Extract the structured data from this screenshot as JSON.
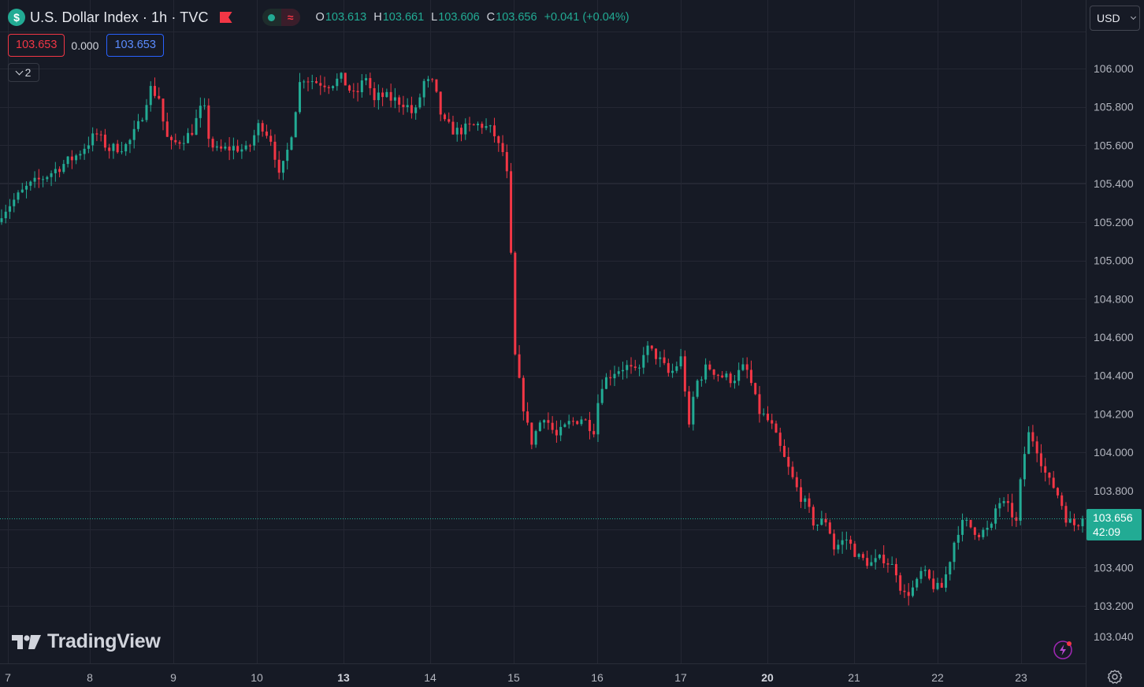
{
  "header": {
    "symbol_glyph": "$",
    "title": "U.S. Dollar Index · 1h · TVC",
    "status_wave": "≈",
    "ohlc": {
      "o_label": "O",
      "o_value": "103.613",
      "h_label": "H",
      "h_value": "103.661",
      "l_label": "L",
      "l_value": "103.606",
      "c_label": "C",
      "c_value": "103.656",
      "change": "+0.041 (+0.04%)"
    }
  },
  "quote": {
    "bid": "103.653",
    "spread": "0.000",
    "ask": "103.653"
  },
  "indicators_toggle": {
    "count": "2"
  },
  "currency_selector": {
    "value": "USD"
  },
  "last_price": {
    "price": "103.656",
    "countdown": "42:09"
  },
  "branding": {
    "name": "TradingView"
  },
  "colors": {
    "background": "#161a25",
    "grid": "#242733",
    "up": "#22ab94",
    "down": "#f23645",
    "axis_text": "#b2b5be",
    "ask_border": "#2962ff"
  },
  "icons": {
    "symbol": "dollar-icon",
    "flag": "flag-icon",
    "status": "market-status-icon",
    "collapse": "chevron-down-icon",
    "currency": "chevron-down-icon",
    "bolt": "lightning-icon",
    "settings": "gear-icon",
    "logo": "tradingview-logo-icon"
  },
  "chart_data": {
    "type": "candlestick",
    "ylim": [
      102.96,
      106.2
    ],
    "y_ticks": [
      "106.000",
      "105.800",
      "105.600",
      "105.400",
      "105.200",
      "105.000",
      "104.800",
      "104.600",
      "104.400",
      "104.200",
      "104.000",
      "103.800",
      "103.600",
      "103.400",
      "103.200",
      "103.040"
    ],
    "x_ticks": [
      "7",
      "8",
      "9",
      "10",
      "13",
      "14",
      "15",
      "16",
      "17",
      "20",
      "21",
      "22",
      "23"
    ],
    "x_ticks_bold": [
      "13",
      "20"
    ],
    "grid": true,
    "last_value": 103.656,
    "candle_count": 262,
    "close_path": [
      [
        0,
        105.25
      ],
      [
        8,
        105.38
      ],
      [
        15,
        105.45
      ],
      [
        24,
        105.55
      ],
      [
        30,
        105.66
      ],
      [
        34,
        105.58
      ],
      [
        40,
        105.6
      ],
      [
        44,
        105.72
      ],
      [
        47,
        105.9
      ],
      [
        50,
        105.85
      ],
      [
        52,
        105.65
      ],
      [
        54,
        105.6
      ],
      [
        60,
        105.66
      ],
      [
        64,
        105.82
      ],
      [
        66,
        105.62
      ],
      [
        68,
        105.57
      ],
      [
        74,
        105.59
      ],
      [
        78,
        105.57
      ],
      [
        82,
        105.72
      ],
      [
        86,
        105.62
      ],
      [
        88,
        105.43
      ],
      [
        90,
        105.52
      ],
      [
        92,
        105.67
      ],
      [
        95,
        105.96
      ],
      [
        100,
        105.93
      ],
      [
        104,
        105.92
      ],
      [
        108,
        105.95
      ],
      [
        112,
        105.85
      ],
      [
        116,
        105.97
      ],
      [
        118,
        105.82
      ],
      [
        120,
        105.86
      ],
      [
        124,
        105.84
      ],
      [
        128,
        105.82
      ],
      [
        131,
        105.75
      ],
      [
        134,
        105.93
      ],
      [
        137,
        105.92
      ],
      [
        140,
        105.72
      ],
      [
        144,
        105.67
      ],
      [
        148,
        105.69
      ],
      [
        152,
        105.71
      ],
      [
        156,
        105.67
      ],
      [
        158,
        105.58
      ],
      [
        160,
        105.55
      ],
      [
        162,
        104.9
      ],
      [
        163,
        104.48
      ],
      [
        166,
        104.2
      ],
      [
        168,
        104.05
      ],
      [
        172,
        104.2
      ],
      [
        176,
        104.08
      ],
      [
        180,
        104.15
      ],
      [
        184,
        104.18
      ],
      [
        188,
        104.12
      ],
      [
        190,
        104.35
      ],
      [
        194,
        104.42
      ],
      [
        198,
        104.45
      ],
      [
        202,
        104.4
      ],
      [
        204,
        104.55
      ],
      [
        208,
        104.5
      ],
      [
        212,
        104.4
      ],
      [
        216,
        104.5
      ],
      [
        218,
        104.1
      ],
      [
        220,
        104.35
      ],
      [
        224,
        104.45
      ],
      [
        228,
        104.4
      ],
      [
        232,
        104.38
      ],
      [
        236,
        104.45
      ],
      [
        238,
        104.35
      ],
      [
        240,
        104.22
      ],
      [
        244,
        104.15
      ],
      [
        248,
        103.98
      ],
      [
        252,
        103.82
      ],
      [
        256,
        103.7
      ],
      [
        258,
        103.62
      ],
      [
        262,
        103.65
      ],
      [
        264,
        103.5
      ],
      [
        268,
        103.55
      ],
      [
        272,
        103.45
      ],
      [
        276,
        103.42
      ],
      [
        280,
        103.45
      ],
      [
        284,
        103.38
      ],
      [
        286,
        103.25
      ],
      [
        290,
        103.3
      ],
      [
        292,
        103.38
      ],
      [
        296,
        103.3
      ],
      [
        298,
        103.28
      ],
      [
        300,
        103.38
      ],
      [
        302,
        103.52
      ],
      [
        304,
        103.62
      ],
      [
        306,
        103.63
      ],
      [
        310,
        103.58
      ],
      [
        314,
        103.6
      ],
      [
        316,
        103.75
      ],
      [
        320,
        103.7
      ],
      [
        322,
        103.63
      ],
      [
        324,
        103.95
      ],
      [
        326,
        104.1
      ],
      [
        328,
        104.05
      ],
      [
        330,
        103.95
      ],
      [
        332,
        103.85
      ],
      [
        334,
        103.82
      ],
      [
        336,
        103.75
      ],
      [
        338,
        103.65
      ],
      [
        340,
        103.62
      ],
      [
        342,
        103.64
      ],
      [
        343,
        103.656
      ]
    ]
  }
}
